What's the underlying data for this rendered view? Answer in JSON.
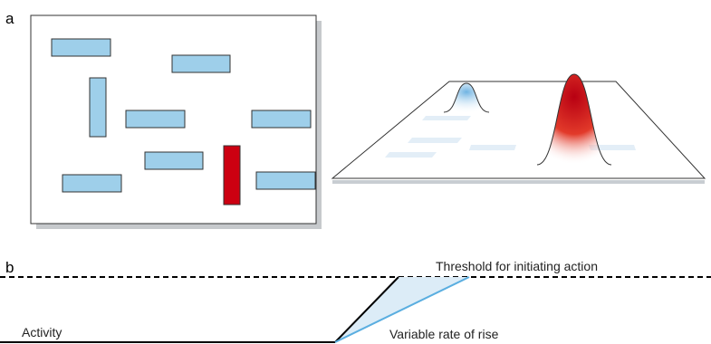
{
  "panel_a": {
    "label": "a",
    "colors": {
      "item": "#9ecfea",
      "item_stroke": "#333333",
      "target": "#cc0011",
      "plane_shadow": "#c8cdd2"
    },
    "peaks": [
      {
        "id": "small",
        "color": "#8fc3e6"
      },
      {
        "id": "large",
        "color": "#d6001c"
      }
    ]
  },
  "panel_b": {
    "label": "b",
    "threshold_label": "Threshold for initiating action",
    "activity_label": "Activity",
    "rate_label": "Variable rate of rise",
    "colors": {
      "baseline": "#000000",
      "fast_rise": "#000000",
      "slow_rise": "#5aaee0",
      "range_fill": "#dcecf7"
    }
  }
}
